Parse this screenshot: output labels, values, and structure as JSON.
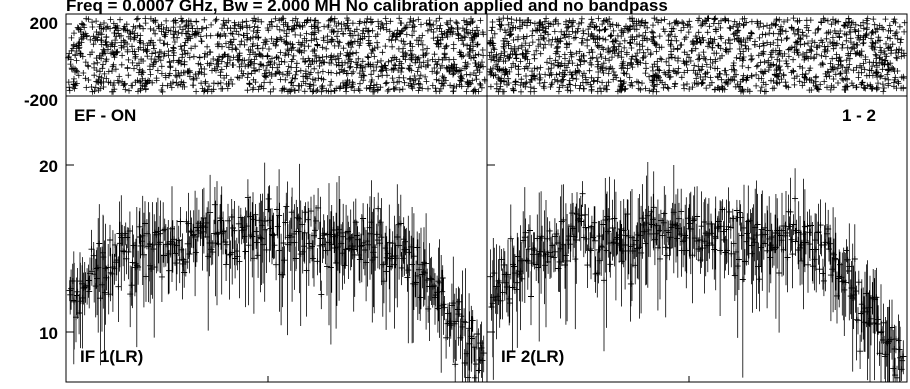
{
  "title": "Freq = 0.0007 GHz, Bw = 2.000 MH   No calibration applied and no bandpass",
  "chart_data": [
    {
      "type": "scatter",
      "panel": "phase",
      "yticks": [
        200,
        -200
      ],
      "ylim": [
        -200,
        200
      ],
      "xlim": [
        0,
        1
      ],
      "point_count_per_if": 1500,
      "marker": "+",
      "series": [
        {
          "label": "IF 1(LR)",
          "values_uniformly_random_in": [
            -180,
            180
          ]
        },
        {
          "label": "IF 2(LR)",
          "values_uniformly_random_in": [
            -180,
            180
          ]
        }
      ]
    },
    {
      "type": "scatter",
      "panel": "amplitude",
      "yscale": "log",
      "ylim": [
        8.3,
        32
      ],
      "yticks": [
        20,
        10
      ],
      "xlim": [
        0,
        1
      ],
      "corner_labels": {
        "left": "EF - ON",
        "right": "1 - 2"
      },
      "marker": "+",
      "error_bars": true,
      "series": [
        {
          "label": "IF 1(LR)",
          "profile_x": [
            0.0,
            0.08,
            0.2,
            0.5,
            0.8,
            0.9,
            1.0
          ],
          "profile_y": [
            11.5,
            14.5,
            16.0,
            16.8,
            15.8,
            12.0,
            9.0
          ]
        },
        {
          "label": "IF 2(LR)",
          "profile_x": [
            0.0,
            0.08,
            0.2,
            0.5,
            0.8,
            0.9,
            1.0
          ],
          "profile_y": [
            12.5,
            14.8,
            16.1,
            16.8,
            15.8,
            12.0,
            9.0
          ]
        }
      ]
    }
  ]
}
